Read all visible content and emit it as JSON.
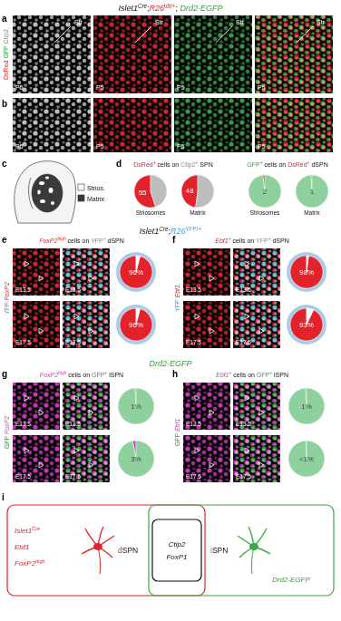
{
  "figure": {
    "headers": [
      [
        {
          "text": "Islet1",
          "italic": true
        },
        {
          "text": "Cre",
          "italic": true,
          "sup": true
        },
        {
          "text": ";"
        },
        {
          "text": "R26",
          "italic": true,
          "color": "#e3232b"
        },
        {
          "text": "tdt/+",
          "sup": true,
          "color": "#e3232b"
        },
        {
          "text": "; "
        },
        {
          "text": "Drd2-EGFP",
          "italic": true,
          "color": "#2f9e3f"
        }
      ],
      [
        {
          "text": "Islet1",
          "italic": true
        },
        {
          "text": "Cre",
          "italic": true,
          "sup": true
        },
        {
          "text": ";"
        },
        {
          "text": "R26",
          "italic": true,
          "color": "#4a9bd4"
        },
        {
          "text": "YFP/+",
          "sup": true,
          "color": "#4a9bd4"
        }
      ],
      [
        {
          "text": "Drd2-EGFP",
          "italic": true,
          "color": "#2f9e3f"
        }
      ]
    ],
    "a": {
      "letter": "a",
      "channels": [
        {
          "text": "DsRed ",
          "color": "#e3232b"
        },
        {
          "text": "GFP ",
          "color": "#2f9e3f"
        },
        {
          "text": "Ctip2",
          "color": "#8a8a8a"
        }
      ],
      "tiles": [
        {
          "color": "#d0d0d0",
          "labels": [
            "Str",
            "P5"
          ]
        },
        {
          "color": "#e3232b",
          "labels": [
            "Str",
            "P5"
          ]
        },
        {
          "color": "#3aa845",
          "labels": [
            "Str",
            "P5"
          ]
        },
        {
          "colors": [
            "#e3232b",
            "#3aa845"
          ],
          "labels": [
            "Str",
            "P5"
          ]
        }
      ]
    },
    "b": {
      "letter": "b",
      "tiles": [
        {
          "color": "#d0d0d0",
          "labels": [
            "P5"
          ]
        },
        {
          "color": "#e3232b",
          "labels": [
            "P5"
          ]
        },
        {
          "color": "#3aa845",
          "labels": [
            "P5"
          ]
        },
        {
          "colors": [
            "#e3232b",
            "#3aa845"
          ],
          "labels": [
            "P5"
          ]
        }
      ]
    },
    "c": {
      "letter": "c",
      "legend": [
        {
          "text": "Strios.",
          "color": "#ffffff"
        },
        {
          "text": "Matrix",
          "color": "#3a3a3a"
        }
      ]
    },
    "d": {
      "letter": "d",
      "titles": [
        [
          {
            "text": "DsRed",
            "color": "#e3232b"
          },
          {
            "text": "+",
            "sup": true,
            "color": "#e3232b"
          },
          {
            "text": " cells on "
          },
          {
            "text": "Ctip2",
            "color": "#8a8a8a"
          },
          {
            "text": "+",
            "sup": true,
            "color": "#8a8a8a"
          },
          {
            "text": " SPN"
          }
        ],
        [
          {
            "text": "GFP",
            "color": "#2f9e3f"
          },
          {
            "text": "+",
            "sup": true,
            "color": "#2f9e3f"
          },
          {
            "text": " cells on "
          },
          {
            "text": "DsRed",
            "color": "#e3232b"
          },
          {
            "text": "+",
            "sup": true,
            "color": "#e3232b"
          },
          {
            "text": " dSPN"
          }
        ]
      ]
    },
    "e": {
      "letter": "e",
      "title": [
        {
          "text": "FoxP2",
          "italic": true,
          "color": "#e3232b"
        },
        {
          "text": "high",
          "sup": true,
          "color": "#e3232b"
        },
        {
          "text": " cells on "
        },
        {
          "text": "YFP",
          "color": "#4a9bd4"
        },
        {
          "text": "+",
          "sup": true,
          "color": "#4a9bd4"
        },
        {
          "text": " dSPN"
        }
      ],
      "channels": [
        {
          "text": "YFP ",
          "color": "#4a9bd4"
        },
        {
          "text": "FoxP2",
          "italic": true,
          "color": "#e3232b"
        }
      ],
      "stages": [
        "E13.5",
        "E17.5"
      ],
      "tiles": [
        {
          "color": "#e3232b"
        },
        {
          "colors": [
            "#5ec4e0",
            "#e3232b"
          ]
        }
      ]
    },
    "f": {
      "letter": "f",
      "title": [
        {
          "text": "Ebf1",
          "italic": true,
          "color": "#e3232b"
        },
        {
          "text": "+",
          "sup": true,
          "color": "#e3232b"
        },
        {
          "text": " cells on "
        },
        {
          "text": "YFP",
          "color": "#4a9bd4"
        },
        {
          "text": "+",
          "sup": true,
          "color": "#4a9bd4"
        },
        {
          "text": " dSPN"
        }
      ],
      "channels": [
        {
          "text": "YFP ",
          "color": "#4a9bd4"
        },
        {
          "text": "Ebf1",
          "italic": true,
          "color": "#e3232b"
        }
      ],
      "stages": [
        "E13.5",
        "E17.5"
      ],
      "tiles": [
        {
          "color": "#e3232b"
        },
        {
          "colors": [
            "#5ec4e0",
            "#e3232b"
          ]
        }
      ]
    },
    "g": {
      "letter": "g",
      "title": [
        {
          "text": "FoxP2",
          "italic": true,
          "color": "#d838c8"
        },
        {
          "text": "high",
          "sup": true,
          "color": "#d838c8"
        },
        {
          "text": " cells on "
        },
        {
          "text": "GFP",
          "color": "#2f9e3f"
        },
        {
          "text": "+",
          "sup": true,
          "color": "#2f9e3f"
        },
        {
          "text": " iSPN"
        }
      ],
      "channels": [
        {
          "text": "GFP ",
          "color": "#2f9e3f"
        },
        {
          "text": "FoxP2",
          "italic": true,
          "color": "#d838c8"
        }
      ],
      "stages": [
        "E13.5",
        "E17.5"
      ],
      "tiles": [
        {
          "color": "#d838c8"
        },
        {
          "colors": [
            "#3aa845",
            "#d838c8"
          ]
        }
      ]
    },
    "h": {
      "letter": "h",
      "title": [
        {
          "text": "Ebf1",
          "italic": true,
          "color": "#d838c8"
        },
        {
          "text": "+",
          "sup": true,
          "color": "#d838c8"
        },
        {
          "text": " cells on "
        },
        {
          "text": "GFP",
          "color": "#2f9e3f"
        },
        {
          "text": "+",
          "sup": true,
          "color": "#2f9e3f"
        },
        {
          "text": " iSPN"
        }
      ],
      "channels": [
        {
          "text": "GFP ",
          "color": "#2f9e3f"
        },
        {
          "text": "Ebf1",
          "italic": true,
          "color": "#d838c8"
        }
      ],
      "stages": [
        "E13.5",
        "E17.5"
      ],
      "tiles": [
        {
          "color": "#d838c8"
        },
        {
          "colors": [
            "#3aa845",
            "#d838c8"
          ]
        }
      ]
    },
    "i": {
      "letter": "i",
      "left": [
        [
          {
            "text": "Islet1",
            "italic": true,
            "color": "#e3232b"
          },
          {
            "text": "Cre",
            "italic": true,
            "sup": true,
            "color": "#e3232b"
          }
        ],
        [
          {
            "text": "Ebf1",
            "italic": true,
            "color": "#e3232b"
          }
        ],
        [
          {
            "text": "FoxP2",
            "italic": true,
            "color": "#e3232b"
          },
          {
            "text": "high",
            "sup": true,
            "color": "#e3232b"
          }
        ]
      ],
      "dspn": [
        {
          "text": "d",
          "color": "#e3232b"
        },
        {
          "text": "SPN"
        }
      ],
      "center": [
        [
          {
            "text": "Ctip2",
            "italic": true
          }
        ],
        [
          {
            "text": "FoxP1",
            "italic": true
          }
        ]
      ],
      "ispn": [
        {
          "text": "i",
          "color": "#2f9e3f"
        },
        {
          "text": "SPN"
        }
      ],
      "right": [
        [
          {
            "text": "Drd2-EGFP",
            "italic": true,
            "color": "#2f9e3f"
          }
        ]
      ]
    }
  },
  "chart_data": [
    {
      "type": "pie",
      "title": "Striosomes",
      "values": [
        55,
        45
      ],
      "colors": [
        "#e3232b",
        "#bdbdbd"
      ],
      "data_labels": true,
      "value_labels": [
        "55",
        null
      ]
    },
    {
      "type": "pie",
      "title": "Matrix",
      "values": [
        48,
        52
      ],
      "colors": [
        "#e3232b",
        "#bdbdbd"
      ],
      "data_labels": true,
      "value_labels": [
        "48",
        null
      ]
    },
    {
      "type": "pie",
      "title": "Striosomes",
      "values": [
        2,
        98
      ],
      "colors": [
        "#e3232b",
        "#8fd19e"
      ],
      "data_labels": true,
      "value_labels": [
        "2",
        null
      ]
    },
    {
      "type": "pie",
      "title": "Matrix",
      "values": [
        1,
        99
      ],
      "colors": [
        "#e3232b",
        "#8fd19e"
      ],
      "data_labels": true,
      "value_labels": [
        "1",
        null
      ]
    },
    {
      "type": "pie",
      "values": [
        96,
        4
      ],
      "colors": [
        "#e3232b",
        "#ffffff"
      ],
      "marker": "ring",
      "data_labels": true,
      "value_labels": [
        "96%",
        null
      ]
    },
    {
      "type": "pie",
      "values": [
        96,
        4
      ],
      "colors": [
        "#e3232b",
        "#ffffff"
      ],
      "marker": "ring",
      "data_labels": true,
      "value_labels": [
        "96%",
        null
      ]
    },
    {
      "type": "pie",
      "values": [
        98,
        2
      ],
      "colors": [
        "#e3232b",
        "#ffffff"
      ],
      "marker": "ring",
      "data_labels": true,
      "value_labels": [
        "98%",
        null
      ]
    },
    {
      "type": "pie",
      "values": [
        93,
        7
      ],
      "colors": [
        "#e3232b",
        "#ffffff"
      ],
      "marker": "ring",
      "data_labels": true,
      "value_labels": [
        "93%",
        null
      ]
    },
    {
      "type": "pie",
      "values": [
        1,
        99
      ],
      "colors": [
        "#d838c8",
        "#8fd19e"
      ],
      "data_labels": true,
      "value_labels": [
        "1%",
        null
      ]
    },
    {
      "type": "pie",
      "values": [
        3,
        97
      ],
      "colors": [
        "#d838c8",
        "#8fd19e"
      ],
      "data_labels": true,
      "value_labels": [
        "3%",
        null
      ]
    },
    {
      "type": "pie",
      "values": [
        1,
        99
      ],
      "colors": [
        "#d838c8",
        "#8fd19e"
      ],
      "data_labels": true,
      "value_labels": [
        "1%",
        null
      ]
    },
    {
      "type": "pie",
      "values": [
        0.5,
        99.5
      ],
      "colors": [
        "#d838c8",
        "#8fd19e"
      ],
      "data_labels": true,
      "value_labels": [
        "<1%",
        null
      ]
    }
  ]
}
